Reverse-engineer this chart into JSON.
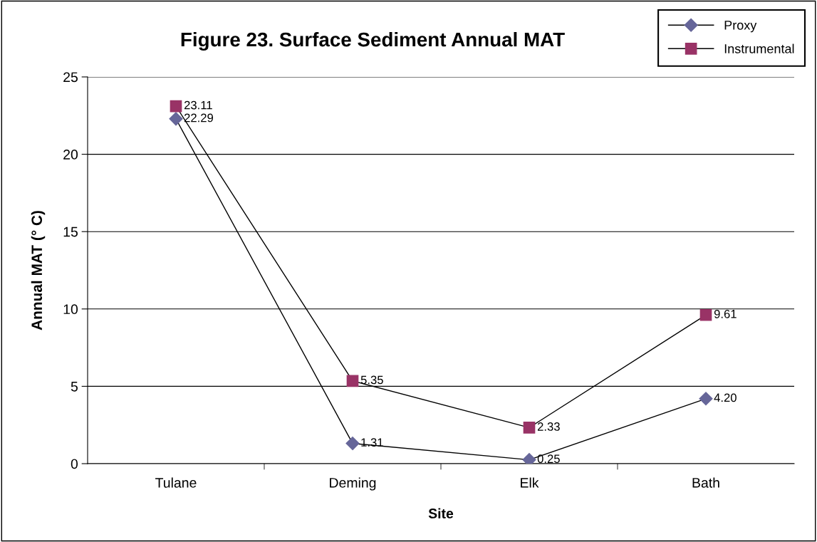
{
  "chart_data": {
    "type": "line",
    "title": "Figure 23. Surface Sediment Annual MAT",
    "xlabel": "Site",
    "ylabel": "Annual MAT (° C)",
    "categories": [
      "Tulane",
      "Deming",
      "Elk",
      "Bath"
    ],
    "series": [
      {
        "name": "Proxy",
        "color": "#666699",
        "marker": "diamond",
        "values": [
          22.29,
          1.31,
          0.25,
          4.2
        ],
        "value_labels": [
          "22.29",
          "1.31",
          "0.25",
          "4.20"
        ]
      },
      {
        "name": "Instrumental",
        "color": "#993366",
        "marker": "square",
        "values": [
          23.11,
          5.35,
          2.33,
          9.61
        ],
        "value_labels": [
          "23.11",
          "5.35",
          "2.33",
          "9.61"
        ]
      }
    ],
    "ylim": [
      0,
      25
    ],
    "yticks": [
      0,
      5,
      10,
      15,
      20,
      25
    ],
    "grid": "y",
    "legend": "top right",
    "line_style": "solid"
  }
}
